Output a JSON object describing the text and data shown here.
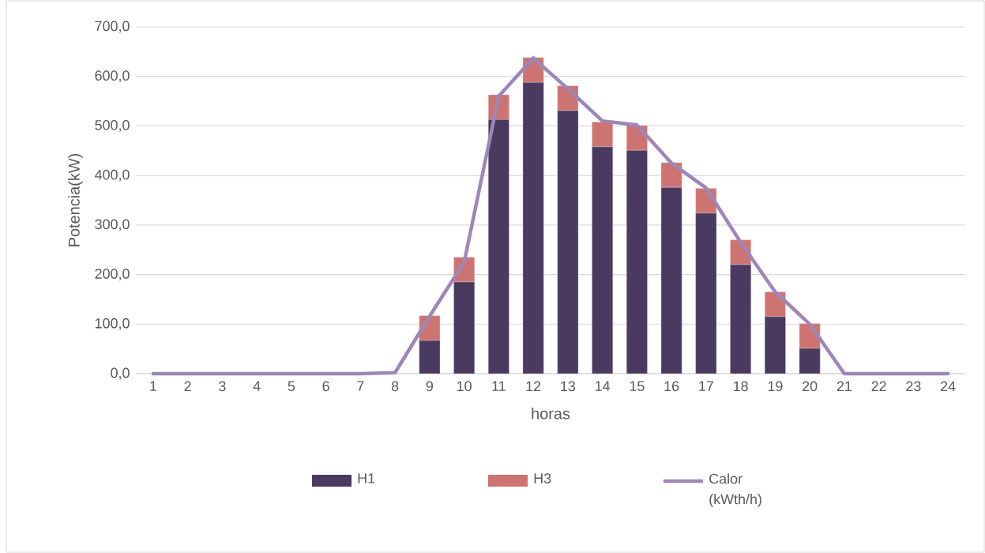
{
  "chart_data": {
    "type": "bar",
    "stacked": true,
    "xlabel": "horas",
    "ylabel": "Potencia(kW)",
    "categories": [
      "1",
      "2",
      "3",
      "4",
      "5",
      "6",
      "7",
      "8",
      "9",
      "10",
      "11",
      "12",
      "13",
      "14",
      "15",
      "16",
      "17",
      "18",
      "19",
      "20",
      "21",
      "22",
      "23",
      "24"
    ],
    "series": [
      {
        "name": "H1",
        "color": "#4b3a60",
        "values": [
          0,
          0,
          0,
          0,
          0,
          0,
          0,
          0,
          67,
          185,
          513,
          588,
          531,
          458,
          451,
          376,
          324,
          220,
          115,
          51,
          0,
          0,
          0,
          0
        ]
      },
      {
        "name": "H3",
        "color": "#cd7472",
        "values": [
          0,
          0,
          0,
          0,
          0,
          0,
          0,
          0,
          50,
          50,
          50,
          50,
          50,
          50,
          50,
          50,
          50,
          50,
          50,
          50,
          0,
          0,
          0,
          0
        ]
      },
      {
        "name": "Calor (kWth/h)",
        "type": "line",
        "color": "#9e86b8",
        "values": [
          0,
          0,
          0,
          0,
          0,
          0,
          0,
          2,
          116,
          225,
          560,
          637,
          575,
          510,
          502,
          425,
          375,
          265,
          165,
          100,
          0,
          0,
          0,
          0
        ]
      }
    ],
    "ylim": [
      0,
      700
    ],
    "yticks": [
      {
        "value": 0,
        "label": "0,0"
      },
      {
        "value": 100,
        "label": "100,0"
      },
      {
        "value": 200,
        "label": "200,0"
      },
      {
        "value": 300,
        "label": "300,0"
      },
      {
        "value": 400,
        "label": "400,0"
      },
      {
        "value": 500,
        "label": "500,0"
      },
      {
        "value": 600,
        "label": "600,0"
      },
      {
        "value": 700,
        "label": "700,0"
      }
    ],
    "grid": "y",
    "legend": "bottom",
    "marker": "none",
    "line_style": "solid"
  }
}
